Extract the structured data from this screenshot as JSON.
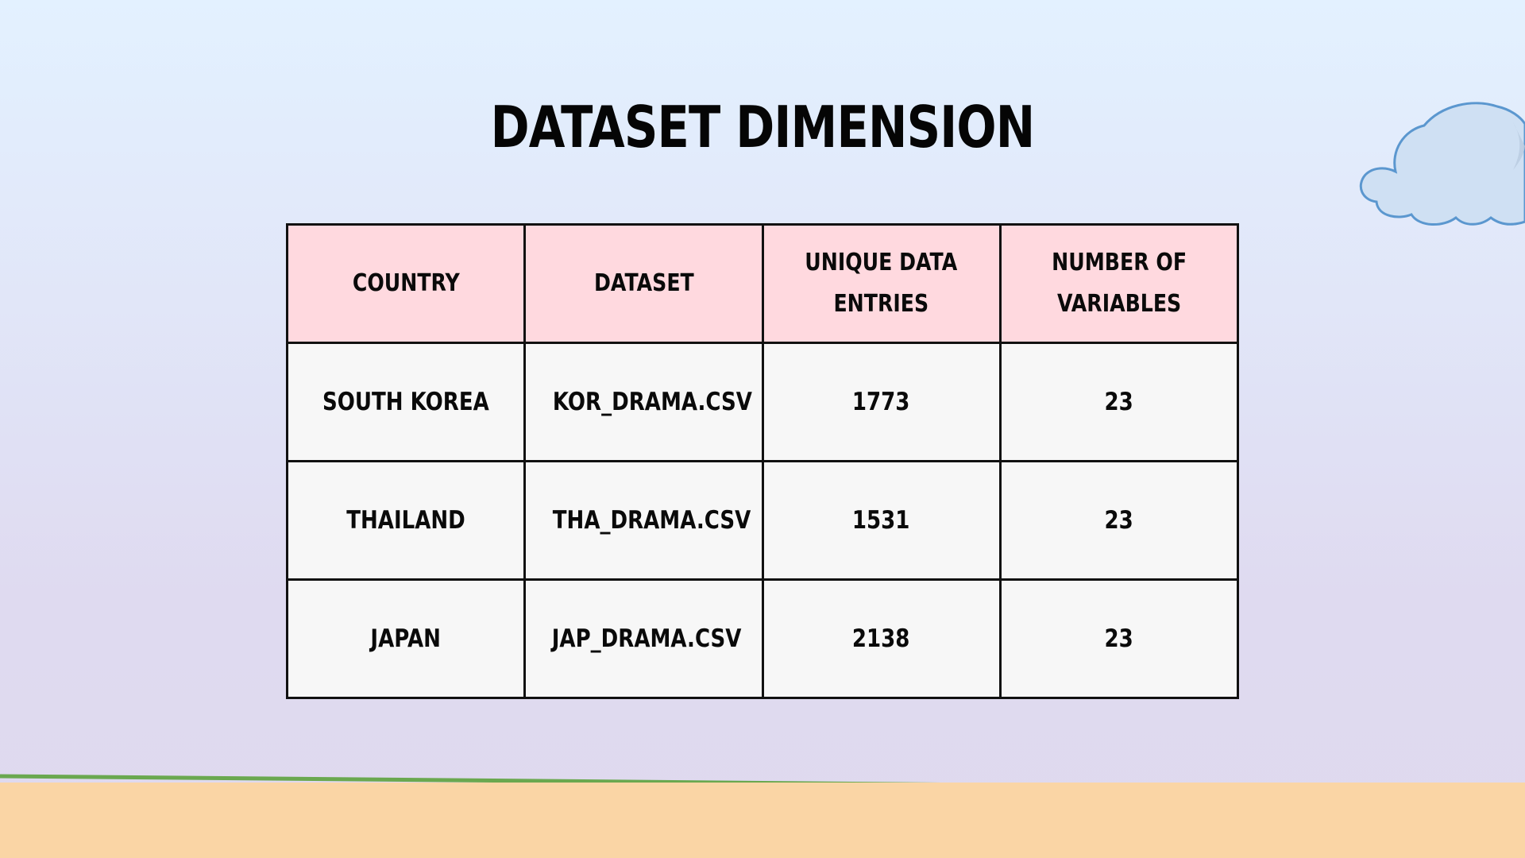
{
  "slide": {
    "title": "DATASET DIMENSION"
  },
  "table": {
    "headers": [
      "COUNTRY",
      "DATASET",
      "UNIQUE DATA\nENTRIES",
      "NUMBER OF\nVARIABLES"
    ],
    "rows": [
      [
        "SOUTH KOREA",
        "KOR_DRAMA.CSV",
        "1773",
        "23"
      ],
      [
        "THAILAND",
        "THA_DRAMA.CSV",
        "1531",
        "23"
      ],
      [
        "JAPAN",
        "JAP_DRAMA.CSV",
        "2138",
        "23"
      ]
    ]
  },
  "decorations": {
    "cloud_icon": "cloud-icon",
    "header_color": "#ffd9df",
    "cell_color": "#f7f7f7",
    "ground_color": "#fad5a5",
    "grass_line_color": "#6aa84f"
  }
}
